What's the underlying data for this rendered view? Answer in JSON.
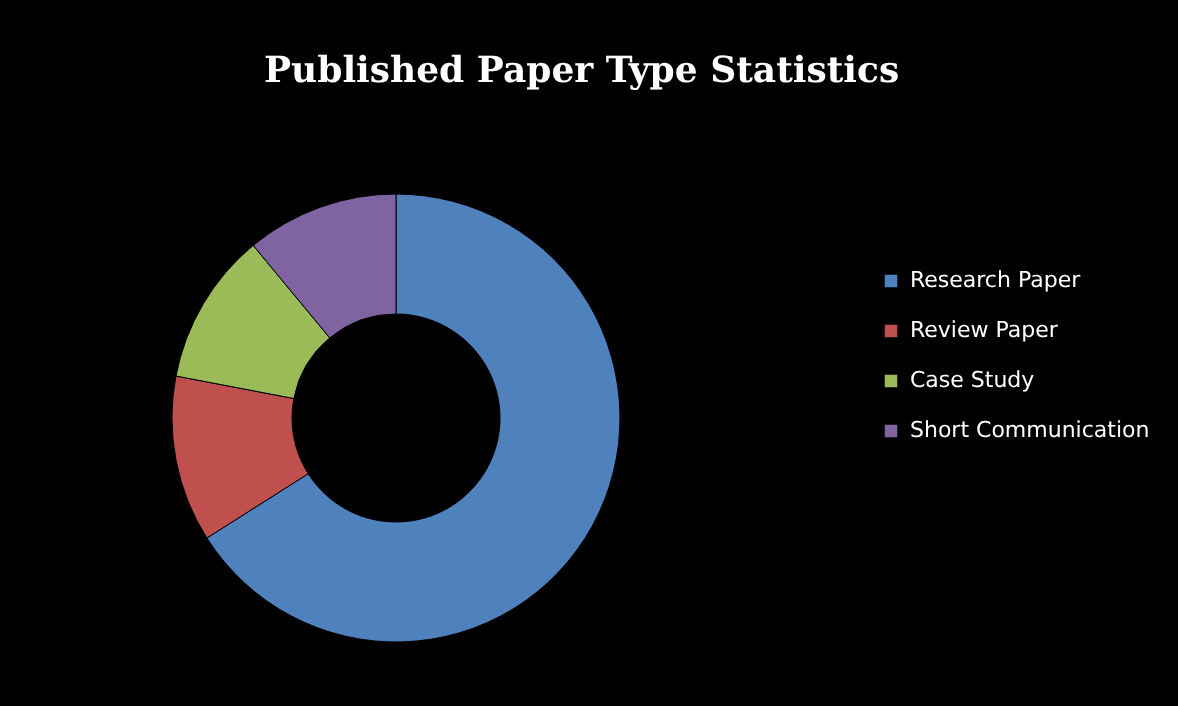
{
  "chart_data": {
    "type": "donut",
    "title": "Published Paper Type Statistics",
    "categories": [
      "Research Paper",
      "Review Paper",
      "Case Study",
      "Short Communication"
    ],
    "values": [
      66,
      12,
      11,
      11
    ],
    "colors": [
      "#4f81bd",
      "#c0504d",
      "#9bbb59",
      "#8064a2"
    ],
    "legend": "right"
  }
}
